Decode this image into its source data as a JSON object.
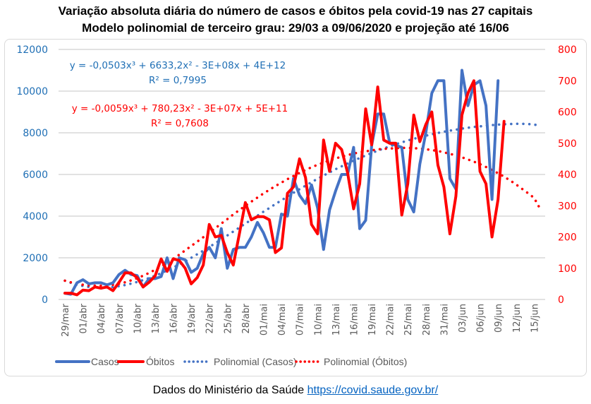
{
  "title_line1": "Variação absoluta diária do número de casos e óbitos pela covid-19 nas 27 capitais",
  "title_line2": "Modelo polinomial de terceiro grau: 29/03 a 09/06/2020 e projeção até 16/06",
  "footer": {
    "text": "Dados do Ministério da Saúde ",
    "link": "https://covid.saude.gov.br/"
  },
  "colors": {
    "casos": "#4472c4",
    "obitos": "#ff0000",
    "left_axis": "#1f6fb5",
    "right_axis": "#ff0000",
    "grid": "#d9d9d9"
  },
  "chart_data": {
    "type": "line",
    "title": "Variação absoluta diária do número de casos e óbitos pela covid-19 nas 27 capitais",
    "subtitle": "Modelo polinomial de terceiro grau: 29/03 a 09/06/2020 e projeção até 16/06",
    "xlabel": "",
    "ylabel_left": "Casos",
    "ylabel_right": "Óbitos",
    "ylim_left": [
      0,
      12000
    ],
    "yticks_left": [
      "0",
      "2000",
      "4000",
      "6000",
      "8000",
      "10000",
      "12000"
    ],
    "ylim_right": [
      0,
      800
    ],
    "yticks_right": [
      "0",
      "100",
      "200",
      "300",
      "400",
      "500",
      "600",
      "700",
      "800"
    ],
    "grid": true,
    "legend_position": "bottom",
    "start_date": "29/mar",
    "x_tick_labels": [
      "29/mar",
      "01/abr",
      "04/abr",
      "07/abr",
      "10/abr",
      "13/abr",
      "16/abr",
      "19/abr",
      "22/abr",
      "25/abr",
      "28/abr",
      "01/mai",
      "04/mai",
      "07/mai",
      "10/mai",
      "13/mai",
      "16/mai",
      "19/mai",
      "22/mai",
      "25/mai",
      "28/mai",
      "31/mai",
      "03/jun",
      "06/jun",
      "09/jun",
      "12/jun",
      "15/jun"
    ],
    "x_days_total": 79,
    "series": [
      {
        "name": "Casos",
        "axis": "left",
        "style": "solid",
        "values": [
          300,
          250,
          800,
          950,
          750,
          800,
          800,
          700,
          800,
          1200,
          1400,
          1200,
          1150,
          600,
          1000,
          1000,
          1100,
          2000,
          1000,
          2000,
          1900,
          1300,
          1500,
          2200,
          2500,
          2000,
          3400,
          1500,
          2400,
          2500,
          2500,
          3000,
          3700,
          3200,
          2500,
          2500,
          4100,
          4000,
          5800,
          5000,
          4600,
          5500,
          4400,
          2400,
          4300,
          5200,
          6000,
          6000,
          7300,
          3400,
          3800,
          7400,
          8900,
          8900,
          7500,
          7400,
          7300,
          4800,
          4200,
          6500,
          8000,
          9900,
          10500,
          10500,
          5800,
          5300,
          11000,
          9300,
          10300,
          10500,
          9300,
          4800,
          10500
        ]
      },
      {
        "name": "Óbitos",
        "axis": "right",
        "style": "solid",
        "values": [
          20,
          20,
          15,
          30,
          28,
          40,
          36,
          40,
          28,
          55,
          85,
          85,
          70,
          40,
          55,
          75,
          130,
          90,
          130,
          125,
          100,
          50,
          70,
          110,
          240,
          200,
          205,
          150,
          110,
          210,
          310,
          255,
          265,
          265,
          255,
          150,
          165,
          340,
          360,
          450,
          390,
          240,
          210,
          510,
          410,
          500,
          480,
          405,
          290,
          370,
          610,
          495,
          680,
          510,
          500,
          500,
          270,
          370,
          590,
          505,
          560,
          600,
          430,
          360,
          210,
          330,
          590,
          660,
          700,
          410,
          370,
          200,
          320,
          570
        ]
      },
      {
        "name": "Polinomial (Casos)",
        "axis": "left",
        "style": "dotted",
        "trend_of": "Casos",
        "equation": "y = -0,0503x³ + 6633,2x² - 3E+08x + 4E+12",
        "r2": "R² = 0,7995",
        "values": [
          900,
          800,
          700,
          650,
          600,
          580,
          570,
          580,
          600,
          640,
          690,
          760,
          840,
          930,
          1030,
          1140,
          1260,
          1390,
          1530,
          1680,
          1830,
          2000,
          2170,
          2340,
          2520,
          2700,
          2890,
          3070,
          3260,
          3450,
          3640,
          3830,
          4020,
          4210,
          4390,
          4580,
          4760,
          4940,
          5120,
          5290,
          5460,
          5630,
          5790,
          5950,
          6100,
          6250,
          6390,
          6530,
          6660,
          6790,
          6910,
          7030,
          7140,
          7250,
          7350,
          7450,
          7540,
          7630,
          7710,
          7790,
          7860,
          7930,
          7990,
          8050,
          8100,
          8150,
          8200,
          8240,
          8280,
          8310,
          8340,
          8370,
          8390,
          8410,
          8420,
          8430,
          8430,
          8420,
          8390,
          8360
        ]
      },
      {
        "name": "Polinomial (Óbitos)",
        "axis": "right",
        "style": "dotted",
        "trend_of": "Óbitos",
        "equation": "y = -0,0059x³ + 780,23x² - 3E+07x + 5E+11",
        "r2": "R² = 0,7608",
        "values": [
          60,
          55,
          50,
          47,
          45,
          44,
          44,
          45,
          47,
          50,
          55,
          61,
          68,
          76,
          85,
          95,
          106,
          118,
          130,
          143,
          157,
          171,
          185,
          199,
          214,
          228,
          243,
          257,
          272,
          286,
          300,
          313,
          326,
          339,
          351,
          363,
          374,
          385,
          395,
          405,
          414,
          423,
          431,
          438,
          445,
          451,
          457,
          462,
          467,
          471,
          474,
          477,
          480,
          482,
          483,
          484,
          485,
          485,
          484,
          483,
          481,
          478,
          475,
          471,
          466,
          461,
          455,
          448,
          441,
          433,
          424,
          414,
          404,
          393,
          381,
          368,
          354,
          340,
          325,
          290
        ]
      }
    ],
    "annotations": [
      {
        "text": "y = -0,0503x³ + 6633,2x² - 3E+08x + 4E+12",
        "color": "#1f6fb5"
      },
      {
        "text": "R² = 0,7995",
        "color": "#1f6fb5"
      },
      {
        "text": "y = -0,0059x³ + 780,23x² - 3E+07x + 5E+11",
        "color": "#ff0000"
      },
      {
        "text": "R² = 0,7608",
        "color": "#ff0000"
      }
    ],
    "legend": [
      "Casos",
      "Óbitos",
      "Polinomial (Casos)",
      "Polinomial (Óbitos)"
    ]
  }
}
